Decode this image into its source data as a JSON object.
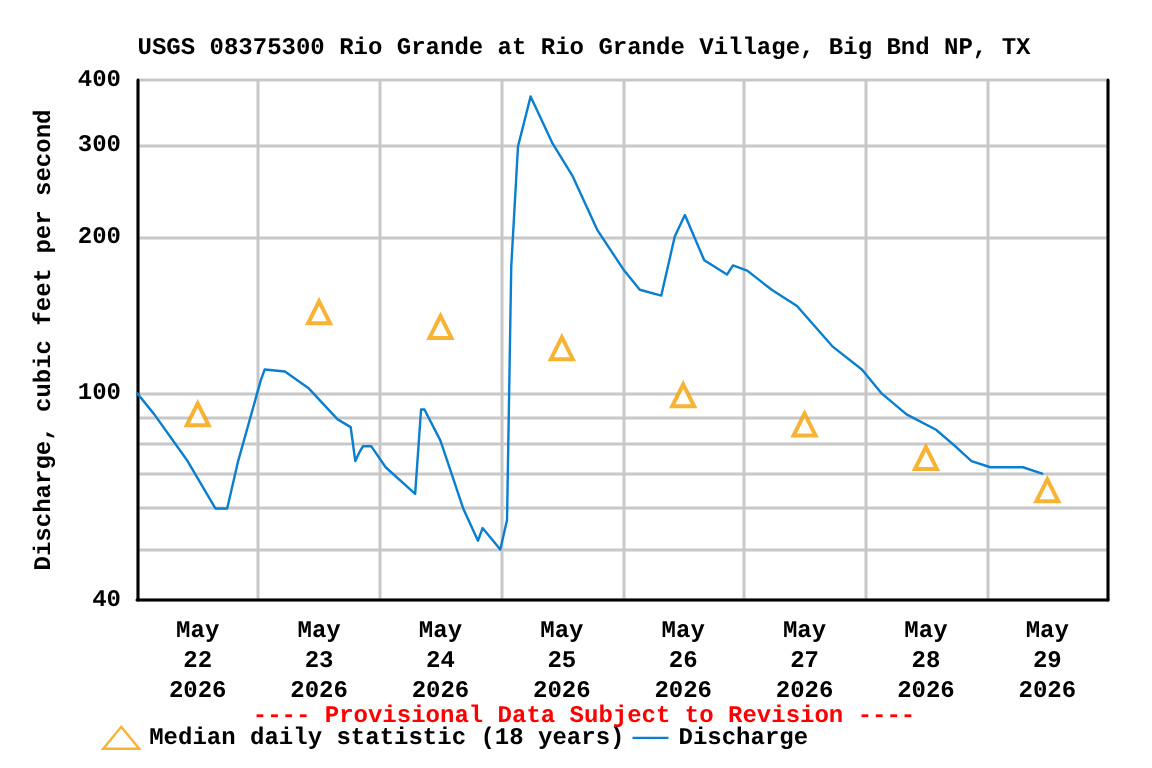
{
  "chart_data": {
    "type": "line",
    "title": "USGS 08375300 Rio Grande at Rio Grande Village, Big Bnd NP, TX",
    "ylabel": "Discharge, cubic feet per second",
    "annotations": [
      "---- Provisional Data Subject to Revision ----"
    ],
    "log": "y",
    "grid": true,
    "legend": "bottom",
    "xlim": [
      "2026-05-22T00:00",
      "2026-05-30T00:00"
    ],
    "xticks": [
      {
        "value": "2026-05-22T00:00",
        "label": null
      },
      {
        "value": "2026-05-22T12:00",
        "label": "May\n22\n2026"
      },
      {
        "value": "2026-05-23T00:00",
        "label": null
      },
      {
        "value": "2026-05-23T12:00",
        "label": "May\n23\n2026"
      },
      {
        "value": "2026-05-24T00:00",
        "label": null
      },
      {
        "value": "2026-05-24T12:00",
        "label": "May\n24\n2026"
      },
      {
        "value": "2026-05-25T00:00",
        "label": null
      },
      {
        "value": "2026-05-25T12:00",
        "label": "May\n25\n2026"
      },
      {
        "value": "2026-05-26T00:00",
        "label": null
      },
      {
        "value": "2026-05-26T12:00",
        "label": "May\n26\n2026"
      },
      {
        "value": "2026-05-27T00:00",
        "label": null
      },
      {
        "value": "2026-05-27T12:00",
        "label": "May\n27\n2026"
      },
      {
        "value": "2026-05-28T00:00",
        "label": null
      },
      {
        "value": "2026-05-28T12:00",
        "label": "May\n28\n2026"
      },
      {
        "value": "2026-05-29T00:00",
        "label": null
      },
      {
        "value": "2026-05-29T12:00",
        "label": "May\n29\n2026"
      },
      {
        "value": "2026-05-30T00:00",
        "label": null
      }
    ],
    "ylim": [
      40,
      400
    ],
    "yticks": [
      40,
      {
        "value": 50,
        "label": null
      },
      {
        "value": 60,
        "label": null
      },
      {
        "value": 70,
        "label": null
      },
      {
        "value": 80,
        "label": null
      },
      {
        "value": 90,
        "label": null
      },
      100,
      200,
      300,
      400
    ],
    "series": [
      {
        "name": "Median daily statistic (18 years)",
        "type": "scatter",
        "marker": "triangle",
        "color": "#f5a000",
        "x": [
          "2026-05-22T12:00",
          "2026-05-23T12:00",
          "2026-05-24T12:00",
          "2026-05-25T12:00",
          "2026-05-26T12:00",
          "2026-05-27T12:00",
          "2026-05-28T12:00",
          "2026-05-29T12:00"
        ],
        "values": [
          91,
          143,
          134,
          122,
          99,
          87,
          75,
          65
        ]
      },
      {
        "name": "Discharge",
        "marker": "none",
        "line_style": "solid",
        "color": "#0a7ecf",
        "x": [
          "2026-05-22T00:00",
          "2026-05-22T03:25",
          "2026-05-22T10:00",
          "2026-05-22T15:30",
          "2026-05-22T17:50",
          "2026-05-22T20:00",
          "2026-05-23T00:30",
          "2026-05-23T01:15",
          "2026-05-23T05:15",
          "2026-05-23T10:00",
          "2026-05-23T15:40",
          "2026-05-23T18:15",
          "2026-05-23T19:10",
          "2026-05-23T20:00",
          "2026-05-23T20:40",
          "2026-05-23T22:20",
          "2026-05-24T01:10",
          "2026-05-24T07:00",
          "2026-05-24T08:10",
          "2026-05-24T08:50",
          "2026-05-24T12:00",
          "2026-05-24T16:30",
          "2026-05-24T19:25",
          "2026-05-24T20:20",
          "2026-05-24T23:50",
          "2026-05-25T01:10",
          "2026-05-25T02:00",
          "2026-05-25T03:20",
          "2026-05-25T05:50",
          "2026-05-25T10:10",
          "2026-05-25T14:10",
          "2026-05-25T19:00",
          "2026-05-26T00:20",
          "2026-05-26T03:25",
          "2026-05-26T07:40",
          "2026-05-26T10:20",
          "2026-05-26T12:20",
          "2026-05-26T16:10",
          "2026-05-26T20:40",
          "2026-05-26T21:50",
          "2026-05-27T00:40",
          "2026-05-27T05:30",
          "2026-05-27T10:30",
          "2026-05-27T17:30",
          "2026-05-27T23:20",
          "2026-05-28T03:10",
          "2026-05-28T08:10",
          "2026-05-28T14:00",
          "2026-05-28T17:50",
          "2026-05-28T21:00",
          "2026-05-29T00:45",
          "2026-05-29T07:10",
          "2026-05-29T11:00"
        ],
        "values": [
          100,
          91,
          74,
          60,
          60,
          74,
          106,
          111,
          110,
          102,
          89,
          86,
          74,
          77,
          79,
          79,
          72,
          64,
          93,
          93,
          81,
          60,
          52,
          55,
          50,
          57,
          175,
          298,
          372,
          302,
          261,
          206,
          172,
          158,
          154,
          200,
          220,
          180,
          169,
          176,
          172,
          158,
          147,
          123,
          111,
          100,
          91,
          85,
          79,
          74,
          72,
          72,
          70
        ]
      }
    ]
  }
}
